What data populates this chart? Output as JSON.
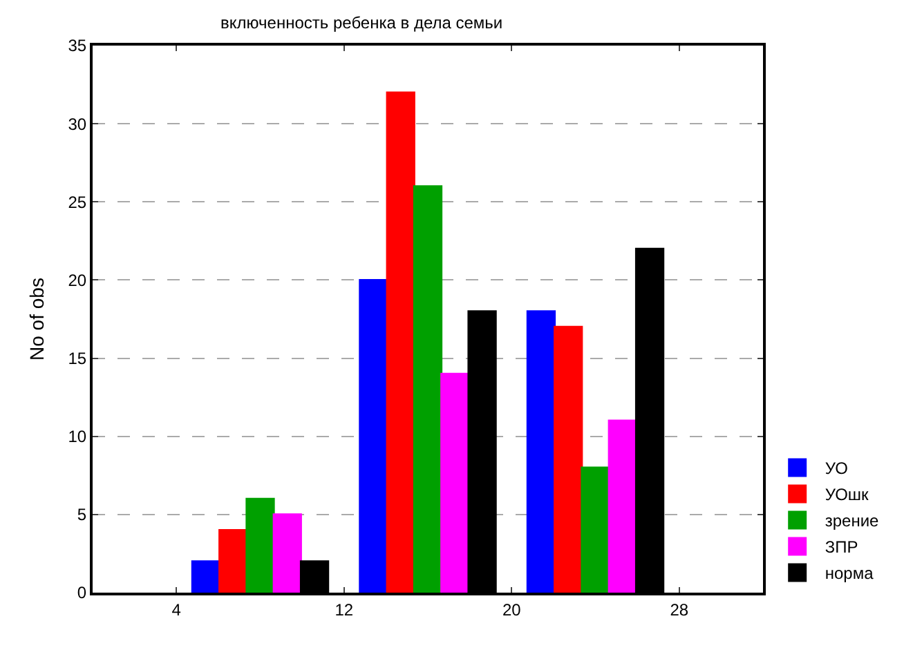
{
  "chart_data": {
    "type": "bar",
    "title": "включенность ребенка в дела семьи",
    "ylabel": "No of obs",
    "x": [
      8,
      16,
      24
    ],
    "xlim": [
      0,
      32
    ],
    "xticks": [
      4,
      12,
      20,
      28
    ],
    "ylim": [
      0,
      35
    ],
    "yticks": [
      0,
      5,
      10,
      15,
      20,
      25,
      30,
      35
    ],
    "grid": "y",
    "legend": "bottom right",
    "series": [
      {
        "name": "УО",
        "color": "#0000ff",
        "values": [
          2,
          20,
          18
        ]
      },
      {
        "name": "УОшк",
        "color": "#ff0000",
        "values": [
          4,
          32,
          17
        ]
      },
      {
        "name": "зрение",
        "color": "#00a000",
        "values": [
          6,
          26,
          8
        ]
      },
      {
        "name": "ЗПР",
        "color": "#ff00ff",
        "values": [
          5,
          14,
          11
        ]
      },
      {
        "name": "норма",
        "color": "#000000",
        "values": [
          2,
          18,
          22
        ]
      }
    ]
  }
}
